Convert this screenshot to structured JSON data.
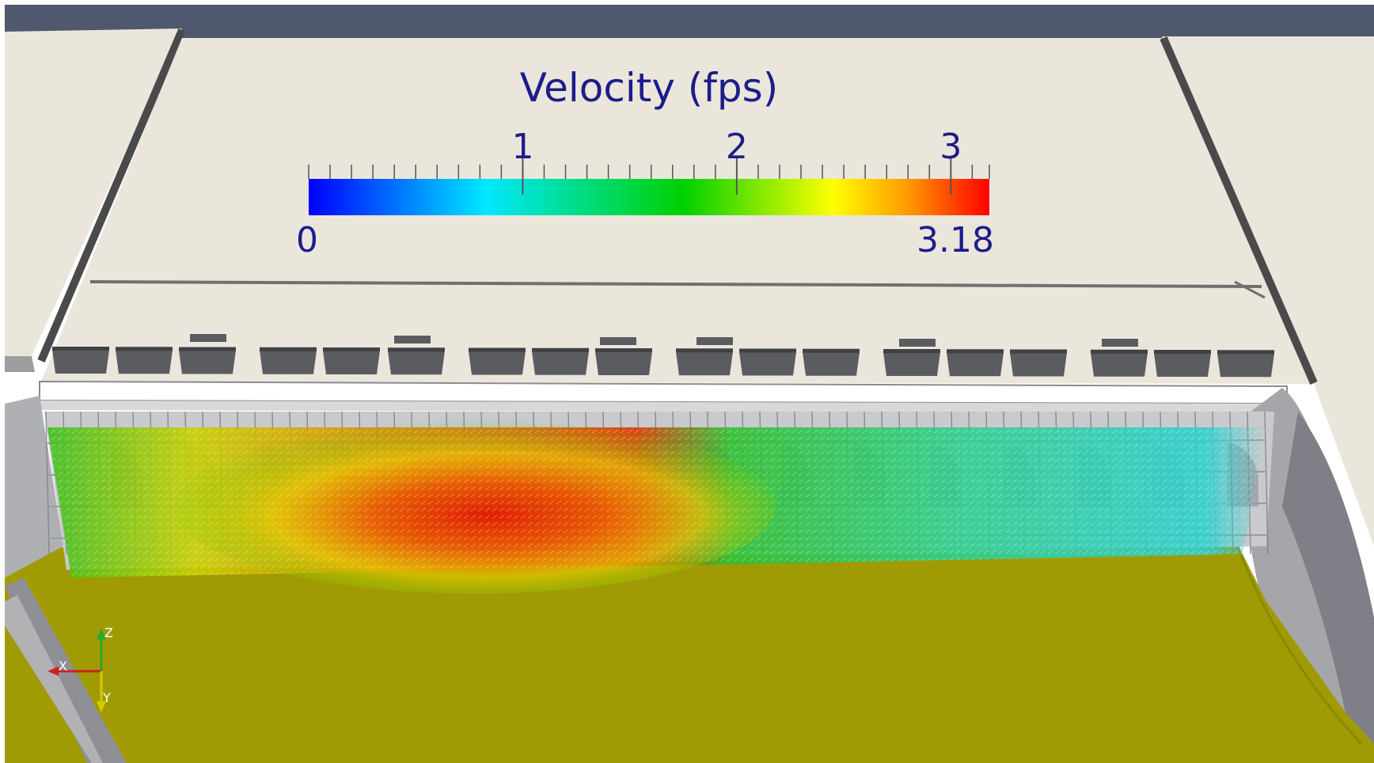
{
  "scene": {
    "colors": {
      "background_top": "#4f586c",
      "roof": "#ebe6dc",
      "ground": "#a09b05",
      "structure": "#a6a6aa",
      "blocks": "#5a5c60"
    }
  },
  "colorbar": {
    "title": "Velocity (fps)",
    "min_label": "0",
    "max_label": "3.18",
    "min_value": 0,
    "max_value": 3.18,
    "ticks": [
      {
        "value": 1,
        "label": "1"
      },
      {
        "value": 2,
        "label": "2"
      },
      {
        "value": 3,
        "label": "3"
      }
    ],
    "minor_tick_count": 33,
    "colormap": [
      "#0000ff",
      "#00e5ff",
      "#00dc00",
      "#ffff00",
      "#ff9a00",
      "#ff0000"
    ]
  },
  "axes_triad": {
    "x_label": "X",
    "y_label": "Y",
    "z_label": "Z"
  }
}
